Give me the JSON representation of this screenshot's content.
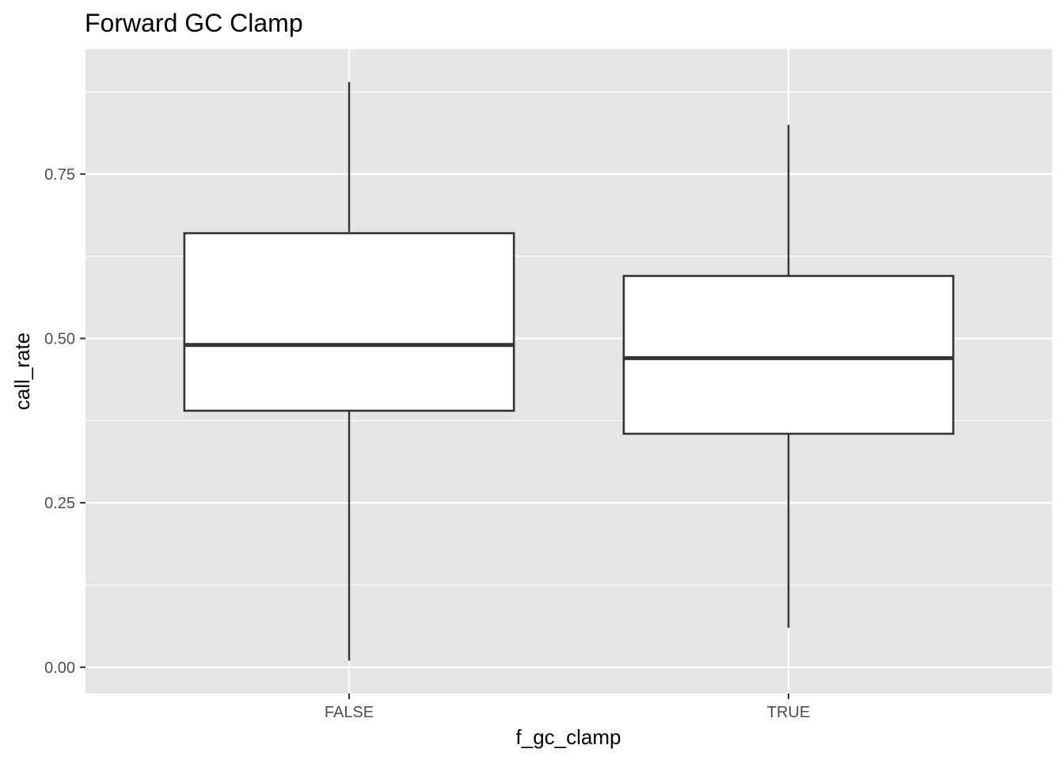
{
  "chart_data": {
    "type": "boxplot",
    "title": "Forward GC Clamp",
    "xlabel": "f_gc_clamp",
    "ylabel": "call_rate",
    "categories": [
      "FALSE",
      "TRUE"
    ],
    "boxes": [
      {
        "category": "FALSE",
        "whisker_low": 0.01,
        "q1": 0.39,
        "median": 0.49,
        "q3": 0.66,
        "whisker_high": 0.89
      },
      {
        "category": "TRUE",
        "whisker_low": 0.06,
        "q1": 0.355,
        "median": 0.47,
        "q3": 0.595,
        "whisker_high": 0.825
      }
    ],
    "y_ticks": [
      "0.00",
      "0.25",
      "0.50",
      "0.75"
    ],
    "y_tick_values": [
      0,
      0.25,
      0.5,
      0.75
    ],
    "ylim": [
      -0.04,
      0.94
    ],
    "grid": true,
    "colors": {
      "panel_background": "#e5e5e5",
      "grid": "#ffffff",
      "box_fill": "#ffffff",
      "box_outline": "#333333",
      "tick_text": "#4d4d4d"
    }
  }
}
